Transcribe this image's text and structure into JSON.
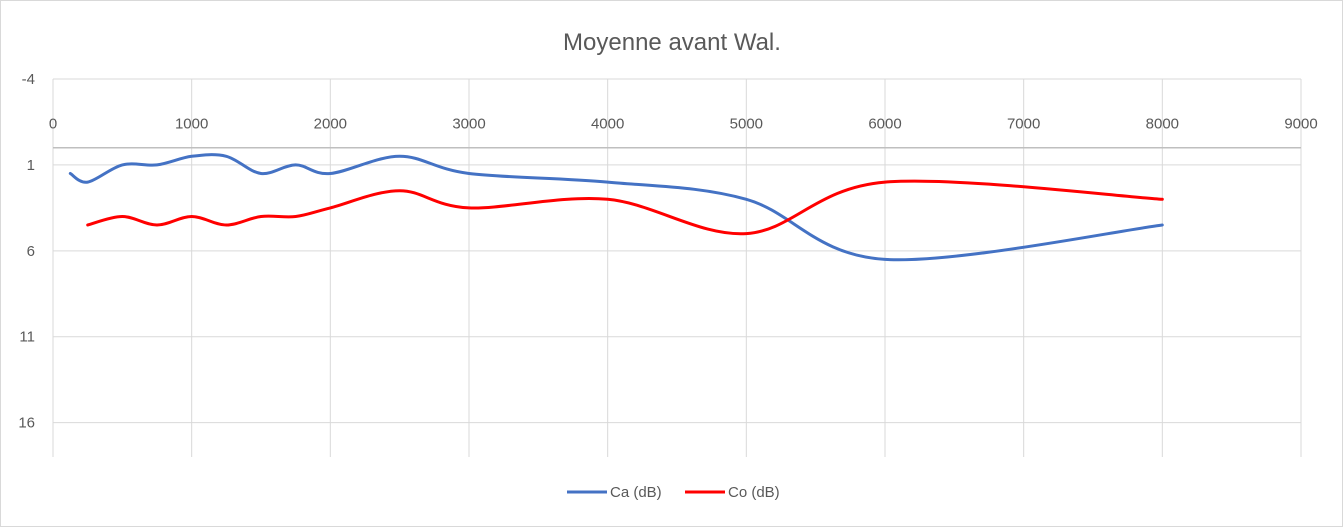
{
  "chart_data": {
    "type": "line",
    "title": "Moyenne avant Wal.",
    "xlabel": "",
    "ylabel": "",
    "xlim": [
      0,
      9000
    ],
    "ylim": [
      -4,
      18
    ],
    "y_reversed": true,
    "x_axis_position": "top",
    "x_ticks": [
      0,
      1000,
      2000,
      3000,
      4000,
      5000,
      6000,
      7000,
      8000,
      9000
    ],
    "y_ticks": [
      -4,
      1,
      6,
      11,
      16
    ],
    "grid": true,
    "legend_position": "bottom",
    "series": [
      {
        "name": "Ca (dB)",
        "color": "#4472c4",
        "x": [
          125,
          250,
          500,
          750,
          1000,
          1250,
          1500,
          1750,
          2000,
          2500,
          3000,
          4000,
          5000,
          6000,
          8000
        ],
        "y": [
          1.5,
          2.0,
          1.0,
          1.0,
          0.5,
          0.5,
          1.5,
          1.0,
          1.5,
          0.5,
          1.5,
          2.0,
          3.0,
          6.5,
          4.5
        ]
      },
      {
        "name": "Co (dB)",
        "color": "#ff0000",
        "x": [
          250,
          500,
          750,
          1000,
          1250,
          1500,
          1750,
          2000,
          2500,
          3000,
          4000,
          5000,
          6000,
          8000
        ],
        "y": [
          4.5,
          4.0,
          4.5,
          4.0,
          4.5,
          4.0,
          4.0,
          3.5,
          2.5,
          3.5,
          3.0,
          5.0,
          2.0,
          3.0
        ]
      }
    ]
  }
}
